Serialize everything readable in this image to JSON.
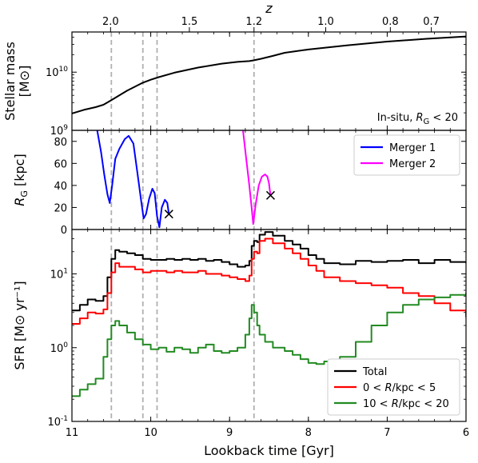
{
  "chart_data": {
    "type": "line",
    "x_axis": {
      "label": "Lookback time [Gyr]",
      "range": [
        11,
        6
      ],
      "ticks": [
        11,
        10,
        9,
        8,
        7,
        6
      ],
      "tick_labels": [
        "11",
        "10",
        "9",
        "8",
        "7",
        "6"
      ]
    },
    "top_axis": {
      "label": "z",
      "ticks": [
        {
          "t": 10.51,
          "label": "2.0"
        },
        {
          "t": 9.51,
          "label": "1.5"
        },
        {
          "t": 8.69,
          "label": "1.2"
        },
        {
          "t": 7.78,
          "label": "1.0"
        },
        {
          "t": 6.96,
          "label": "0.8"
        },
        {
          "t": 6.44,
          "label": "0.7"
        }
      ]
    },
    "vlines": [
      10.5,
      10.1,
      9.92,
      8.69
    ],
    "colors": {
      "total": "#000000",
      "inner": "#ff0000",
      "outer": "#228b22",
      "merger1": "#0000ff",
      "merger2": "#ff00ff",
      "vline": "#b0b0b0"
    },
    "panels": [
      {
        "id": "stellar-mass",
        "type": "line",
        "ylabel": "Stellar mass [M⊙]",
        "yscale": "log",
        "ylim": [
          1000000000.0,
          49000000000.0
        ],
        "y_ticks": [
          {
            "v": 1000000000.0,
            "label": "10^9"
          },
          {
            "v": 10000000000.0,
            "label": "10^10"
          }
        ],
        "annotation": "In-situ, R_G < 20",
        "series": [
          {
            "key": "total",
            "points": [
              [
                11.0,
                1950000000.0
              ],
              [
                10.85,
                2250000000.0
              ],
              [
                10.7,
                2500000000.0
              ],
              [
                10.6,
                2750000000.0
              ],
              [
                10.5,
                3300000000.0
              ],
              [
                10.3,
                4800000000.0
              ],
              [
                10.1,
                6600000000.0
              ],
              [
                10.0,
                7400000000.0
              ],
              [
                9.9,
                8200000000.0
              ],
              [
                9.7,
                9800000000.0
              ],
              [
                9.4,
                12000000000.0
              ],
              [
                9.1,
                14000000000.0
              ],
              [
                8.9,
                15000000000.0
              ],
              [
                8.75,
                15500000000.0
              ],
              [
                8.69,
                16000000000.0
              ],
              [
                8.6,
                17000000000.0
              ],
              [
                8.45,
                19000000000.0
              ],
              [
                8.3,
                21500000000.0
              ],
              [
                8.0,
                24500000000.0
              ],
              [
                7.5,
                29000000000.0
              ],
              [
                7.0,
                33500000000.0
              ],
              [
                6.5,
                37500000000.0
              ],
              [
                6.0,
                41000000000.0
              ]
            ]
          }
        ]
      },
      {
        "id": "r-g",
        "type": "line",
        "ylabel": "R_G [kpc]",
        "yscale": "linear",
        "ylim": [
          0,
          90
        ],
        "y_ticks": [
          {
            "v": 0,
            "label": "0"
          },
          {
            "v": 20,
            "label": "20"
          },
          {
            "v": 40,
            "label": "40"
          },
          {
            "v": 60,
            "label": "60"
          },
          {
            "v": 80,
            "label": "80"
          }
        ],
        "legend": {
          "placement": "top-right",
          "entries": [
            "Merger 1",
            "Merger 2"
          ]
        },
        "series": [
          {
            "key": "merger1",
            "name": "Merger 1",
            "points": [
              [
                10.68,
                90
              ],
              [
                10.63,
                70
              ],
              [
                10.59,
                50
              ],
              [
                10.55,
                32
              ],
              [
                10.52,
                24
              ],
              [
                10.49,
                40
              ],
              [
                10.45,
                64
              ],
              [
                10.4,
                73
              ],
              [
                10.33,
                82
              ],
              [
                10.28,
                85
              ],
              [
                10.22,
                78
              ],
              [
                10.17,
                52
              ],
              [
                10.12,
                25
              ],
              [
                10.09,
                10
              ],
              [
                10.06,
                14
              ],
              [
                10.02,
                28
              ],
              [
                9.98,
                37
              ],
              [
                9.95,
                33
              ],
              [
                9.92,
                12
              ],
              [
                9.89,
                2
              ],
              [
                9.86,
                20
              ],
              [
                9.82,
                27
              ],
              [
                9.79,
                24
              ],
              [
                9.77,
                14
              ]
            ],
            "end_marker": [
              9.77,
              14
            ]
          },
          {
            "key": "merger2",
            "name": "Merger 2",
            "points": [
              [
                8.83,
                90
              ],
              [
                8.79,
                65
              ],
              [
                8.75,
                40
              ],
              [
                8.72,
                20
              ],
              [
                8.7,
                5
              ],
              [
                8.67,
                22
              ],
              [
                8.63,
                40
              ],
              [
                8.59,
                48
              ],
              [
                8.55,
                50
              ],
              [
                8.52,
                48
              ],
              [
                8.5,
                42
              ],
              [
                8.49,
                36
              ],
              [
                8.48,
                31
              ]
            ],
            "end_marker": [
              8.48,
              31
            ]
          }
        ]
      },
      {
        "id": "sfr",
        "type": "line",
        "ylabel": "SFR [M⊙ yr⁻¹]",
        "yscale": "log",
        "ylim": [
          0.1,
          40
        ],
        "y_ticks": [
          {
            "v": 0.1,
            "label": "10^-1"
          },
          {
            "v": 1,
            "label": "10^0"
          },
          {
            "v": 10,
            "label": "10^1"
          }
        ],
        "legend": {
          "placement": "bottom-right",
          "entries": [
            "Total",
            "0 < R/kpc < 5",
            "10 < R/kpc < 20"
          ]
        },
        "series": [
          {
            "key": "total",
            "name": "Total",
            "points": [
              [
                11.0,
                3.2
              ],
              [
                10.9,
                3.8
              ],
              [
                10.8,
                4.5
              ],
              [
                10.7,
                4.3
              ],
              [
                10.6,
                5.0
              ],
              [
                10.55,
                9.0
              ],
              [
                10.5,
                16.0
              ],
              [
                10.45,
                21.0
              ],
              [
                10.4,
                20.0
              ],
              [
                10.3,
                19.0
              ],
              [
                10.2,
                18.0
              ],
              [
                10.1,
                16.0
              ],
              [
                10.0,
                15.5
              ],
              [
                9.9,
                15.5
              ],
              [
                9.8,
                16.0
              ],
              [
                9.7,
                15.5
              ],
              [
                9.6,
                16.0
              ],
              [
                9.5,
                15.5
              ],
              [
                9.4,
                16.0
              ],
              [
                9.3,
                15.0
              ],
              [
                9.2,
                15.5
              ],
              [
                9.1,
                14.5
              ],
              [
                9.0,
                13.5
              ],
              [
                8.9,
                12.5
              ],
              [
                8.8,
                13.0
              ],
              [
                8.75,
                15.0
              ],
              [
                8.72,
                24.0
              ],
              [
                8.69,
                28.0
              ],
              [
                8.65,
                27.0
              ],
              [
                8.62,
                34.0
              ],
              [
                8.55,
                37.0
              ],
              [
                8.45,
                33.0
              ],
              [
                8.3,
                28.0
              ],
              [
                8.2,
                25.0
              ],
              [
                8.1,
                22.0
              ],
              [
                8.0,
                18.0
              ],
              [
                7.9,
                16.0
              ],
              [
                7.8,
                14.0
              ],
              [
                7.6,
                13.5
              ],
              [
                7.4,
                15.0
              ],
              [
                7.2,
                14.5
              ],
              [
                7.0,
                15.0
              ],
              [
                6.8,
                15.5
              ],
              [
                6.6,
                14.0
              ],
              [
                6.4,
                15.5
              ],
              [
                6.2,
                14.5
              ],
              [
                6.0,
                14.0
              ]
            ]
          },
          {
            "key": "inner",
            "name": "0 < R/kpc < 5",
            "points": [
              [
                11.0,
                2.1
              ],
              [
                10.9,
                2.5
              ],
              [
                10.8,
                3.0
              ],
              [
                10.7,
                2.9
              ],
              [
                10.6,
                3.3
              ],
              [
                10.55,
                5.5
              ],
              [
                10.5,
                10.5
              ],
              [
                10.45,
                14.0
              ],
              [
                10.4,
                12.5
              ],
              [
                10.3,
                12.5
              ],
              [
                10.2,
                11.5
              ],
              [
                10.1,
                10.5
              ],
              [
                10.0,
                11.0
              ],
              [
                9.9,
                11.0
              ],
              [
                9.8,
                10.5
              ],
              [
                9.7,
                11.0
              ],
              [
                9.6,
                10.5
              ],
              [
                9.5,
                10.5
              ],
              [
                9.4,
                11.0
              ],
              [
                9.3,
                10.0
              ],
              [
                9.2,
                10.0
              ],
              [
                9.1,
                9.5
              ],
              [
                9.0,
                9.0
              ],
              [
                8.9,
                8.5
              ],
              [
                8.8,
                8.0
              ],
              [
                8.75,
                9.5
              ],
              [
                8.72,
                16.0
              ],
              [
                8.69,
                20.0
              ],
              [
                8.65,
                19.0
              ],
              [
                8.62,
                28.0
              ],
              [
                8.55,
                30.0
              ],
              [
                8.45,
                26.0
              ],
              [
                8.3,
                22.0
              ],
              [
                8.2,
                19.0
              ],
              [
                8.1,
                16.0
              ],
              [
                8.0,
                13.0
              ],
              [
                7.9,
                11.0
              ],
              [
                7.8,
                9.0
              ],
              [
                7.6,
                8.0
              ],
              [
                7.4,
                7.5
              ],
              [
                7.2,
                7.0
              ],
              [
                7.0,
                6.5
              ],
              [
                6.8,
                5.5
              ],
              [
                6.6,
                5.0
              ],
              [
                6.4,
                4.0
              ],
              [
                6.2,
                3.2
              ],
              [
                6.0,
                2.6
              ]
            ]
          },
          {
            "key": "outer",
            "name": "10 < R/kpc < 20",
            "points": [
              [
                11.0,
                0.22
              ],
              [
                10.9,
                0.27
              ],
              [
                10.8,
                0.32
              ],
              [
                10.7,
                0.38
              ],
              [
                10.6,
                0.75
              ],
              [
                10.55,
                1.3
              ],
              [
                10.5,
                2.0
              ],
              [
                10.45,
                2.3
              ],
              [
                10.4,
                2.0
              ],
              [
                10.3,
                1.6
              ],
              [
                10.2,
                1.3
              ],
              [
                10.1,
                1.1
              ],
              [
                10.0,
                0.95
              ],
              [
                9.9,
                1.0
              ],
              [
                9.8,
                0.88
              ],
              [
                9.7,
                1.0
              ],
              [
                9.6,
                0.95
              ],
              [
                9.5,
                0.85
              ],
              [
                9.4,
                1.0
              ],
              [
                9.3,
                1.1
              ],
              [
                9.2,
                0.9
              ],
              [
                9.1,
                0.85
              ],
              [
                9.0,
                0.9
              ],
              [
                8.9,
                1.0
              ],
              [
                8.8,
                1.5
              ],
              [
                8.75,
                2.5
              ],
              [
                8.72,
                3.8
              ],
              [
                8.69,
                3.0
              ],
              [
                8.65,
                2.0
              ],
              [
                8.62,
                1.5
              ],
              [
                8.55,
                1.2
              ],
              [
                8.45,
                1.0
              ],
              [
                8.3,
                0.9
              ],
              [
                8.2,
                0.8
              ],
              [
                8.1,
                0.7
              ],
              [
                8.0,
                0.62
              ],
              [
                7.9,
                0.6
              ],
              [
                7.8,
                0.65
              ],
              [
                7.6,
                0.75
              ],
              [
                7.4,
                1.2
              ],
              [
                7.2,
                2.0
              ],
              [
                7.0,
                3.0
              ],
              [
                6.8,
                3.8
              ],
              [
                6.6,
                4.5
              ],
              [
                6.4,
                4.8
              ],
              [
                6.2,
                5.2
              ],
              [
                6.0,
                5.6
              ]
            ]
          }
        ]
      }
    ]
  }
}
